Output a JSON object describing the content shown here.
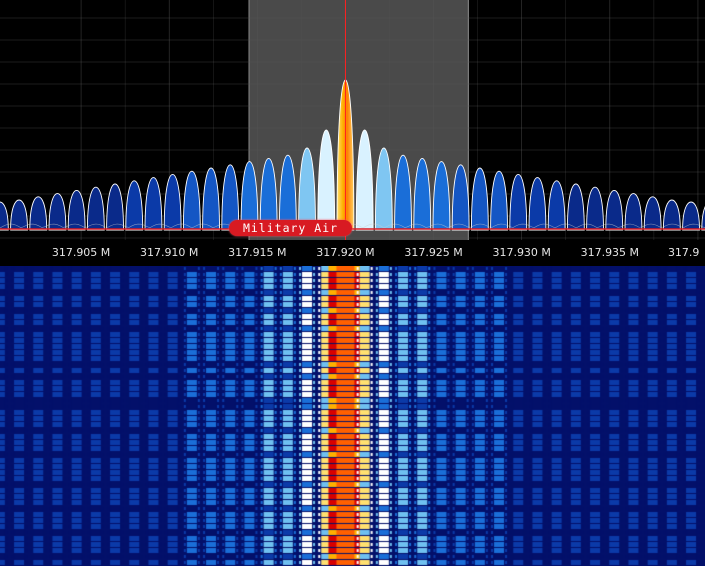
{
  "spectrum": {
    "center_frequency_mhz": 317.92,
    "filter_low_mhz": 317.9145,
    "filter_high_mhz": 317.927,
    "visible_start_mhz": 317.9004,
    "visible_end_mhz": 317.9404,
    "tick_labels": [
      {
        "mhz": 317.905,
        "label": "317.905 M"
      },
      {
        "mhz": 317.91,
        "label": "317.910 M"
      },
      {
        "mhz": 317.915,
        "label": "317.915 M"
      },
      {
        "mhz": 317.92,
        "label": "317.920 M"
      },
      {
        "mhz": 317.925,
        "label": "317.925 M"
      },
      {
        "mhz": 317.93,
        "label": "317.930 M"
      },
      {
        "mhz": 317.935,
        "label": "317.935 M"
      },
      {
        "mhz": 317.94,
        "label": "317.9"
      }
    ],
    "bookmark_label": "Military Air",
    "colors": {
      "background": "#000000",
      "filter_band": "#4a4a4a",
      "grid": "#555555",
      "center_marker": "#ff2020",
      "bookmark": "#d81a22",
      "trace": "#ffffff"
    }
  },
  "waterfall": {
    "colormap": [
      "#03106a",
      "#0b3aa8",
      "#1a6ed8",
      "#6fc0f0",
      "#ffffff",
      "#ffe070",
      "#ffb000",
      "#ff6000",
      "#d80000"
    ]
  }
}
